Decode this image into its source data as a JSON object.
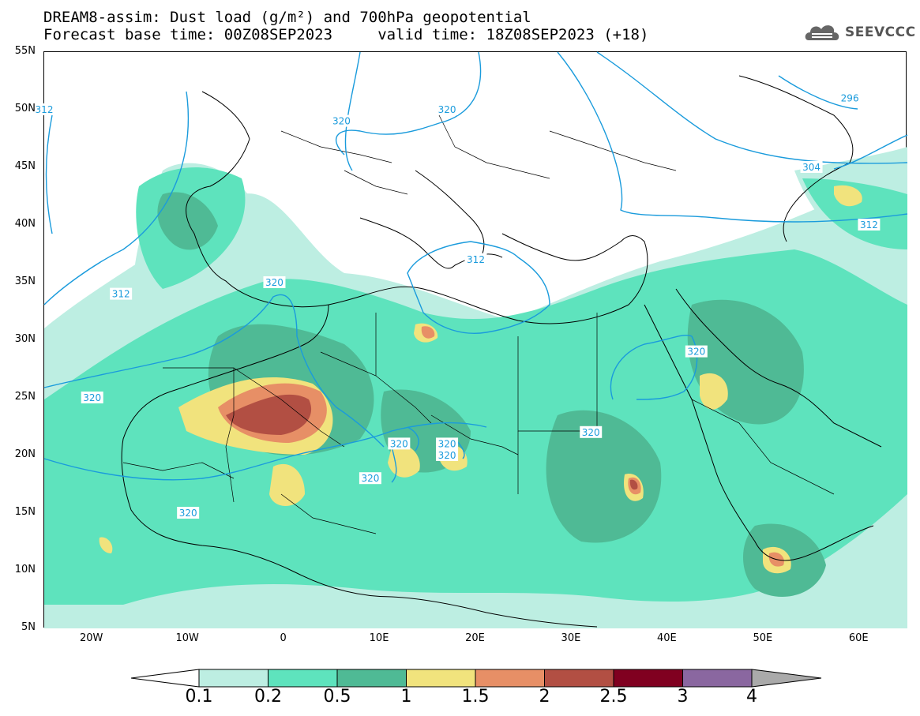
{
  "title": {
    "line1": "DREAM8-assim: Dust load (g/m²) and 700hPa geopotential",
    "line2": "Forecast base time: 00Z08SEP2023     valid time: 18Z08SEP2023 (+18)"
  },
  "logo": {
    "text": "SEEVCCC",
    "icon": "cloud-icon"
  },
  "map": {
    "lat_labels": [
      "55N",
      "50N",
      "45N",
      "40N",
      "35N",
      "30N",
      "25N",
      "20N",
      "15N",
      "10N",
      "5N"
    ],
    "lat_values": [
      55,
      50,
      45,
      40,
      35,
      30,
      25,
      20,
      15,
      10,
      5
    ],
    "lon_labels": [
      "20W",
      "10W",
      "0",
      "10E",
      "20E",
      "30E",
      "40E",
      "50E",
      "60E"
    ],
    "lon_values": [
      -20,
      -10,
      0,
      10,
      20,
      30,
      40,
      50,
      60
    ],
    "lon_range": [
      -25,
      65
    ],
    "lat_range": [
      5,
      55
    ],
    "contour_labels": [
      {
        "text": "312",
        "lon": -25,
        "lat": 50
      },
      {
        "text": "320",
        "lon": 6,
        "lat": 49
      },
      {
        "text": "320",
        "lon": 17,
        "lat": 50
      },
      {
        "text": "296",
        "lon": 59,
        "lat": 51
      },
      {
        "text": "304",
        "lon": 55,
        "lat": 45
      },
      {
        "text": "312",
        "lon": 61,
        "lat": 40
      },
      {
        "text": "312",
        "lon": -17,
        "lat": 34
      },
      {
        "text": "320",
        "lon": -1,
        "lat": 35
      },
      {
        "text": "312",
        "lon": 20,
        "lat": 37
      },
      {
        "text": "320",
        "lon": 43,
        "lat": 29
      },
      {
        "text": "320",
        "lon": -20,
        "lat": 25
      },
      {
        "text": "320",
        "lon": 32,
        "lat": 22
      },
      {
        "text": "320",
        "lon": 12,
        "lat": 21
      },
      {
        "text": "320",
        "lon": 17,
        "lat": 21
      },
      {
        "text": "320",
        "lon": 17,
        "lat": 20
      },
      {
        "text": "320",
        "lon": 9,
        "lat": 18
      },
      {
        "text": "320",
        "lon": -10,
        "lat": 15
      }
    ],
    "colors": {
      "c01": "#bdeee2",
      "c02": "#5ee3bd",
      "c05": "#4fba95",
      "c1": "#f1e37d",
      "c15": "#e78f66",
      "c2": "#b24f43",
      "c25": "#800020",
      "c3": "#8a67a0",
      "c4": "#aaaaaa",
      "contour": "#1a9bdc"
    }
  },
  "colorbar": {
    "labels": [
      "0.1",
      "0.2",
      "0.5",
      "1",
      "1.5",
      "2",
      "2.5",
      "3",
      "4"
    ],
    "colors": [
      "#bdeee2",
      "#5ee3bd",
      "#4fba95",
      "#f1e37d",
      "#e78f66",
      "#b24f43",
      "#800020",
      "#8a67a0"
    ],
    "under_color": "#ffffff",
    "over_color": "#aaaaaa"
  }
}
